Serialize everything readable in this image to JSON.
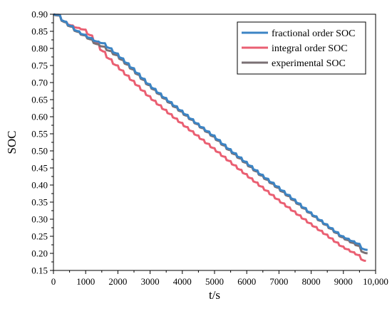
{
  "chart_data": {
    "type": "line",
    "xlabel": "t/s",
    "ylabel": "SOC",
    "xlim": [
      0,
      10000
    ],
    "ylim": [
      0.15,
      0.9
    ],
    "x_ticks": [
      "0",
      "1000",
      "2000",
      "3000",
      "4000",
      "5000",
      "6000",
      "7000",
      "8000",
      "9000",
      "10,000"
    ],
    "y_ticks": [
      "0.15",
      "0.20",
      "0.25",
      "0.30",
      "0.35",
      "0.40",
      "0.45",
      "0.50",
      "0.55",
      "0.60",
      "0.65",
      "0.70",
      "0.75",
      "0.80",
      "0.85",
      "0.90"
    ],
    "legend_position": "top-right",
    "grid": false,
    "series": [
      {
        "name": "fractional order SOC",
        "color": "#3c84c4",
        "x": [
          0,
          200,
          400,
          600,
          800,
          1000,
          1200,
          1400,
          1600,
          1800,
          2000,
          2500,
          3000,
          3500,
          4000,
          4500,
          5000,
          5500,
          6000,
          6500,
          7000,
          7500,
          8000,
          8500,
          9000,
          9500,
          9750
        ],
        "y": [
          0.9,
          0.898,
          0.878,
          0.865,
          0.85,
          0.84,
          0.83,
          0.82,
          0.815,
          0.8,
          0.785,
          0.742,
          0.695,
          0.655,
          0.618,
          0.58,
          0.545,
          0.505,
          0.468,
          0.43,
          0.395,
          0.358,
          0.32,
          0.285,
          0.25,
          0.228,
          0.21
        ]
      },
      {
        "name": "integral order SOC",
        "color": "#ea5f72",
        "x": [
          0,
          200,
          400,
          600,
          800,
          1000,
          1200,
          1400,
          1600,
          1800,
          2000,
          2500,
          3000,
          3500,
          4000,
          4500,
          5000,
          5500,
          6000,
          6500,
          7000,
          7500,
          8000,
          8500,
          9000,
          9500,
          9700
        ],
        "y": [
          0.9,
          0.898,
          0.878,
          0.867,
          0.86,
          0.855,
          0.838,
          0.815,
          0.79,
          0.768,
          0.75,
          0.705,
          0.66,
          0.62,
          0.582,
          0.545,
          0.508,
          0.47,
          0.432,
          0.395,
          0.358,
          0.323,
          0.288,
          0.255,
          0.22,
          0.195,
          0.178
        ]
      },
      {
        "name": "experimental SOC",
        "color": "#7a7074",
        "x": [
          0,
          200,
          400,
          600,
          800,
          1000,
          1200,
          1400,
          1600,
          1800,
          2000,
          2500,
          3000,
          3500,
          4000,
          4500,
          5000,
          5500,
          6000,
          6500,
          7000,
          7500,
          8000,
          8500,
          9000,
          9500,
          9750
        ],
        "y": [
          0.9,
          0.896,
          0.876,
          0.863,
          0.848,
          0.838,
          0.826,
          0.812,
          0.805,
          0.792,
          0.78,
          0.738,
          0.692,
          0.652,
          0.615,
          0.578,
          0.542,
          0.502,
          0.465,
          0.427,
          0.392,
          0.355,
          0.318,
          0.283,
          0.247,
          0.222,
          0.2
        ]
      }
    ]
  }
}
